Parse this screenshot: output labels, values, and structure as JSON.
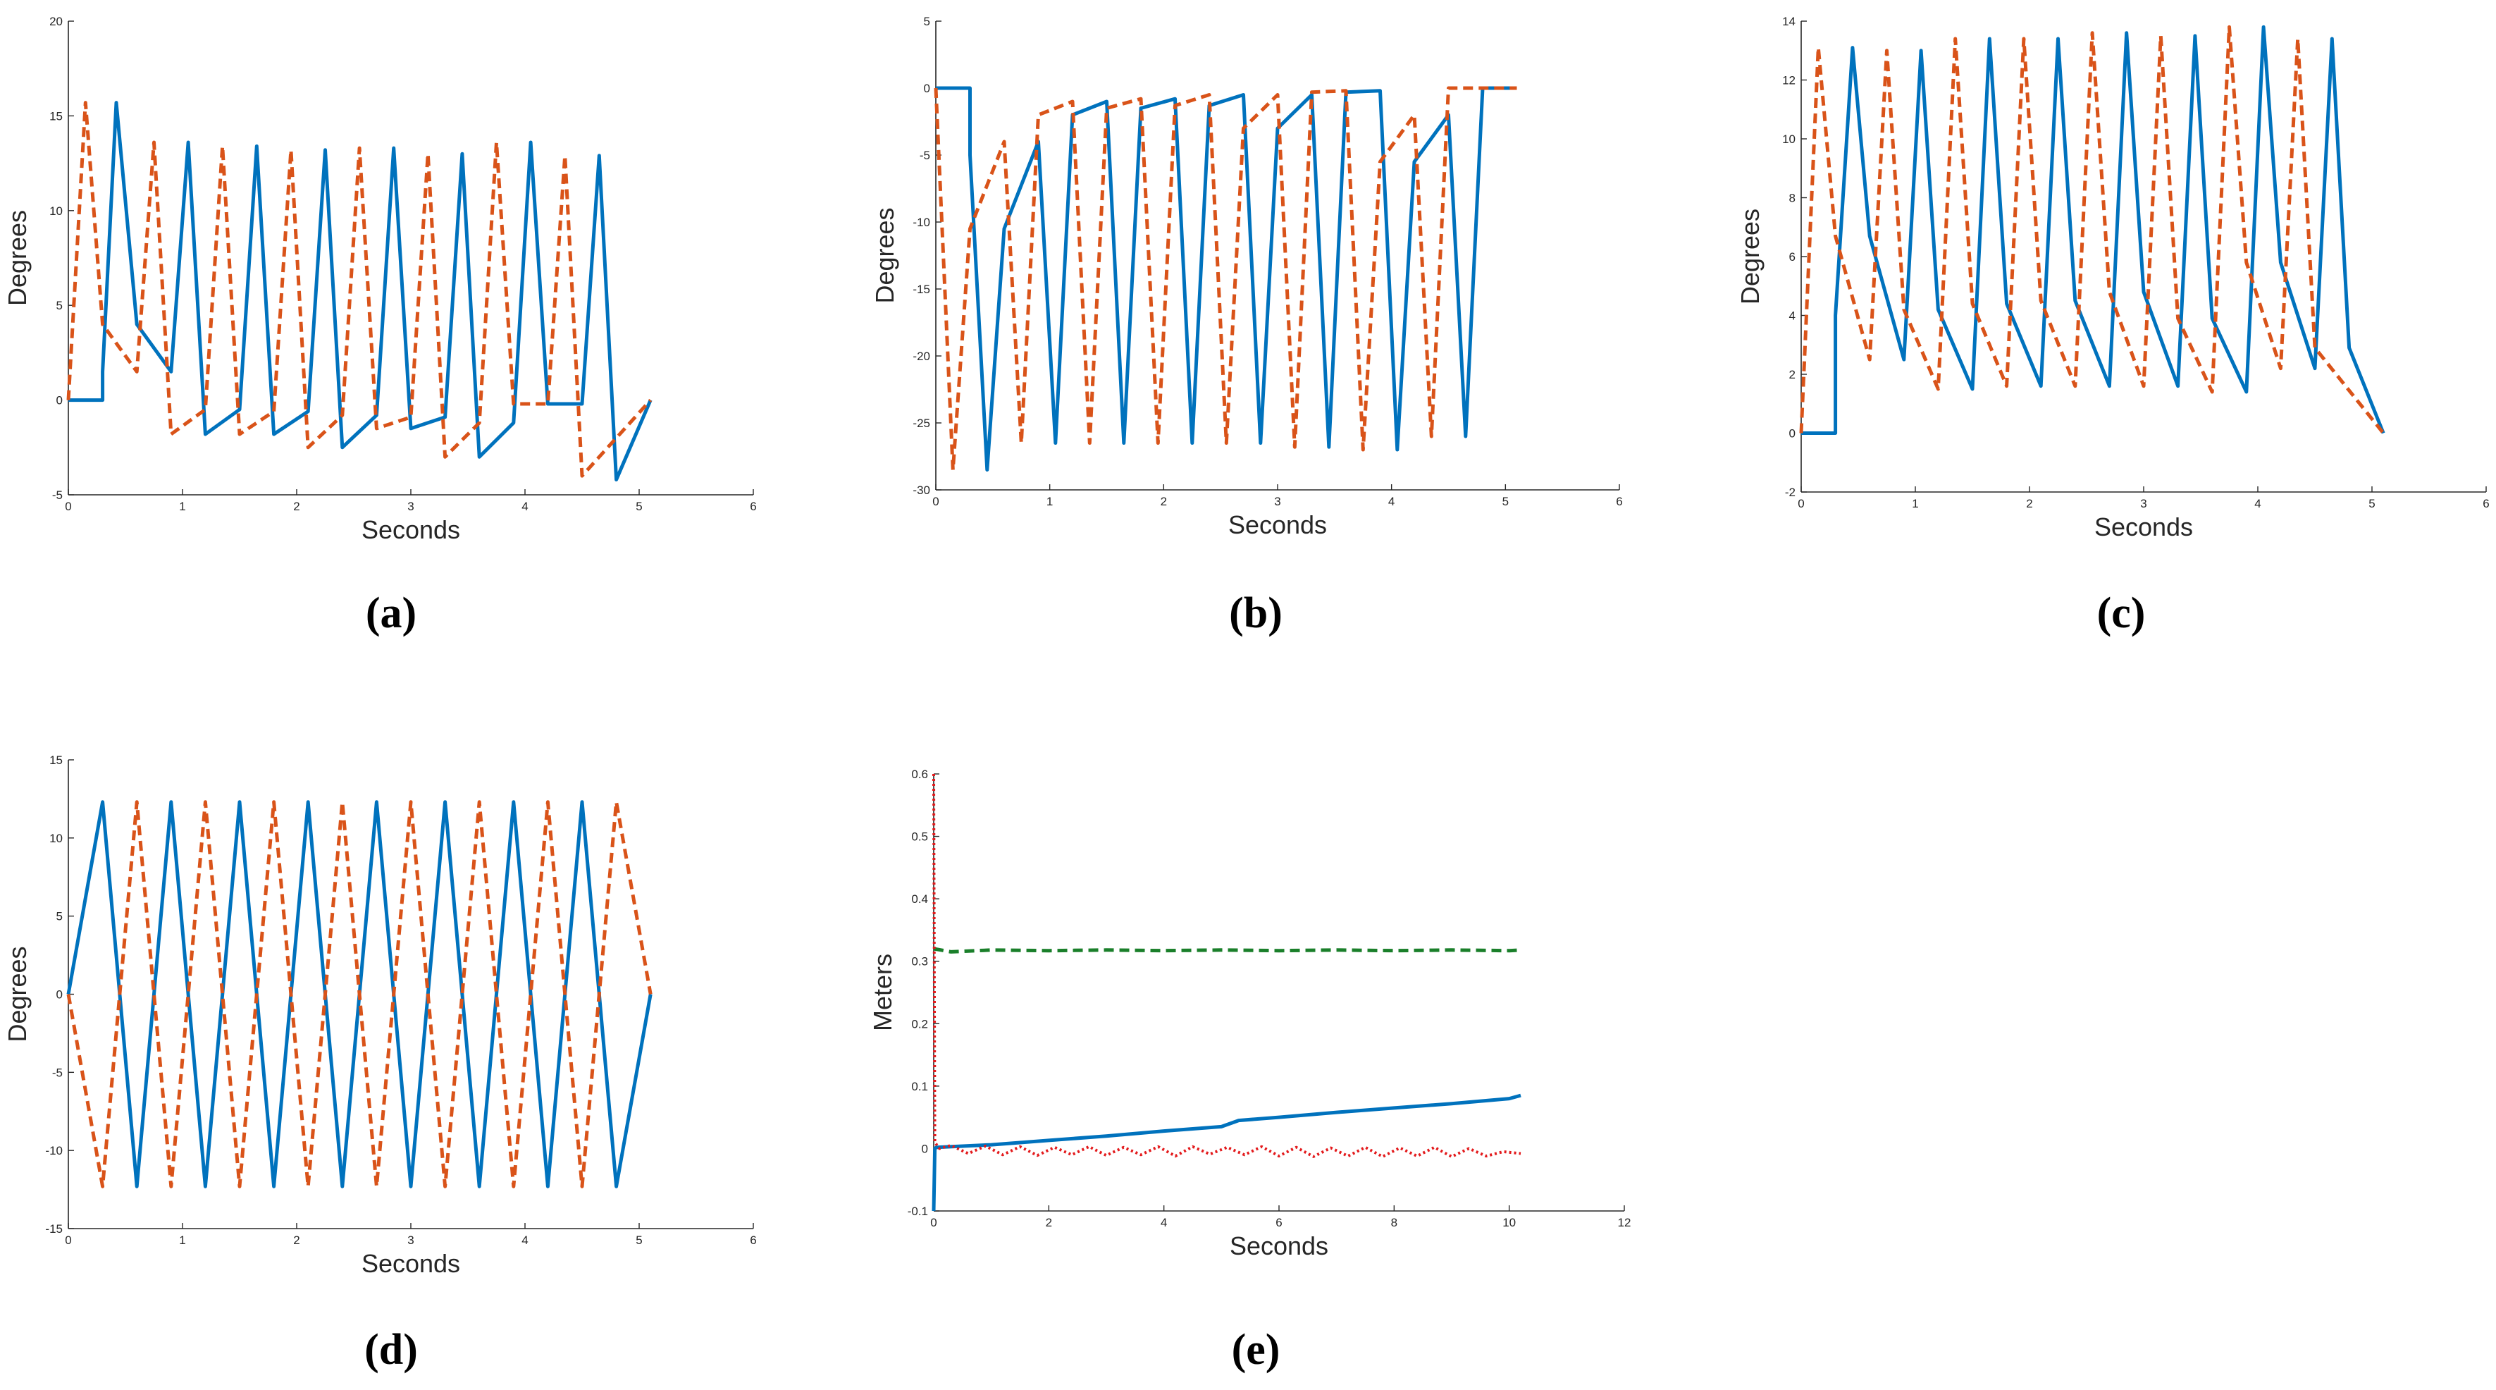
{
  "colors": {
    "series_solid": "#0072BD",
    "series_dashed": "#D95319",
    "series_green": "#1A7F2A",
    "series_red": "#E31A1C",
    "axis": "#262626"
  },
  "chart_data": [
    {
      "panel": "a",
      "caption": "(a)",
      "type": "line",
      "title": "",
      "xlabel": "Seconds",
      "ylabel": "Degrees",
      "xlim": [
        0,
        6
      ],
      "ylim": [
        -5,
        20
      ],
      "xticks": [
        0,
        1,
        2,
        3,
        4,
        5,
        6
      ],
      "yticks": [
        -5,
        0,
        5,
        10,
        15,
        20
      ],
      "series": [
        {
          "name": "solid",
          "style": "solid",
          "x": [
            0,
            0.3,
            0.3,
            0.42,
            0.6,
            0.6,
            0.9,
            0.9,
            1.05,
            1.2,
            1.2,
            1.5,
            1.5,
            1.65,
            1.8,
            1.8,
            2.1,
            2.1,
            2.25,
            2.4,
            2.4,
            2.7,
            2.7,
            2.85,
            3.0,
            3.0,
            3.3,
            3.3,
            3.45,
            3.6,
            3.6,
            3.9,
            3.9,
            4.05,
            4.2,
            4.2,
            4.5,
            4.5,
            4.65,
            4.8,
            4.8,
            5.1
          ],
          "values": [
            0,
            0,
            1.5,
            15.7,
            4.0,
            4.0,
            1.5,
            1.5,
            13.6,
            -1.8,
            -1.8,
            -0.5,
            -0.5,
            13.4,
            -1.8,
            -1.8,
            -0.6,
            -0.6,
            13.2,
            -2.5,
            -2.5,
            -0.8,
            -0.8,
            13.3,
            -1.5,
            -1.5,
            -0.9,
            -0.9,
            13.0,
            -3.0,
            -3.0,
            -1.2,
            -1.2,
            13.6,
            -0.2,
            -0.2,
            -0.2,
            -0.2,
            12.9,
            -4.2,
            -4.2,
            0.0
          ]
        },
        {
          "name": "dashed",
          "style": "dashed",
          "x": [
            0,
            0.15,
            0.3,
            0.3,
            0.6,
            0.6,
            0.75,
            0.9,
            0.9,
            1.2,
            1.2,
            1.35,
            1.5,
            1.5,
            1.8,
            1.8,
            1.95,
            2.1,
            2.1,
            2.4,
            2.4,
            2.55,
            2.7,
            2.7,
            3.0,
            3.0,
            3.15,
            3.3,
            3.3,
            3.6,
            3.6,
            3.75,
            3.9,
            3.9,
            4.2,
            4.2,
            4.35,
            4.5,
            4.5,
            5.1
          ],
          "values": [
            0,
            15.7,
            4.0,
            4.0,
            1.5,
            1.5,
            13.6,
            -1.8,
            -1.8,
            -0.5,
            -0.5,
            13.4,
            -1.8,
            -1.8,
            -0.6,
            -0.6,
            13.2,
            -2.5,
            -2.5,
            -0.8,
            -0.8,
            13.3,
            -1.5,
            -1.5,
            -0.9,
            -0.9,
            13.0,
            -3.0,
            -3.0,
            -1.2,
            -1.2,
            13.6,
            -0.2,
            -0.2,
            -0.2,
            -0.2,
            12.9,
            -4.0,
            -4.0,
            0.0
          ]
        }
      ]
    },
    {
      "panel": "b",
      "caption": "(b)",
      "type": "line",
      "title": "",
      "xlabel": "Seconds",
      "ylabel": "Degrees",
      "xlim": [
        0,
        6
      ],
      "ylim": [
        -30,
        5
      ],
      "xticks": [
        0,
        1,
        2,
        3,
        4,
        5,
        6
      ],
      "yticks": [
        -30,
        -25,
        -20,
        -15,
        -10,
        -5,
        0,
        5
      ],
      "series": [
        {
          "name": "solid",
          "style": "solid",
          "x": [
            0,
            0.3,
            0.3,
            0.45,
            0.6,
            0.6,
            0.9,
            0.9,
            1.05,
            1.2,
            1.2,
            1.5,
            1.5,
            1.65,
            1.8,
            1.8,
            2.1,
            2.1,
            2.25,
            2.4,
            2.4,
            2.7,
            2.7,
            2.85,
            3.0,
            3.0,
            3.3,
            3.3,
            3.45,
            3.6,
            3.6,
            3.9,
            3.9,
            4.05,
            4.2,
            4.2,
            4.5,
            4.5,
            4.65,
            4.8,
            4.8,
            5.1
          ],
          "values": [
            0,
            0,
            -5,
            -28.5,
            -10.5,
            -10.5,
            -4.0,
            -4.0,
            -26.5,
            -2.0,
            -2.0,
            -1.0,
            -1.0,
            -26.5,
            -1.5,
            -1.5,
            -0.8,
            -0.8,
            -26.5,
            -1.3,
            -1.3,
            -0.5,
            -0.5,
            -26.5,
            -3.0,
            -3.0,
            -0.5,
            -0.5,
            -26.8,
            -0.3,
            -0.3,
            -0.2,
            -0.2,
            -27.0,
            -5.5,
            -5.5,
            -2.0,
            -2.0,
            -26.0,
            0.0,
            0.0,
            0.0
          ]
        },
        {
          "name": "dashed",
          "style": "dashed",
          "x": [
            0,
            0.15,
            0.3,
            0.3,
            0.6,
            0.6,
            0.75,
            0.9,
            0.9,
            1.2,
            1.2,
            1.35,
            1.5,
            1.5,
            1.8,
            1.8,
            1.95,
            2.1,
            2.1,
            2.4,
            2.4,
            2.55,
            2.7,
            2.7,
            3.0,
            3.0,
            3.15,
            3.3,
            3.3,
            3.6,
            3.6,
            3.75,
            3.9,
            3.9,
            4.2,
            4.2,
            4.35,
            4.5,
            4.5,
            5.1
          ],
          "values": [
            0,
            -28.5,
            -10.5,
            -10.5,
            -4.0,
            -4.0,
            -26.5,
            -2.0,
            -2.0,
            -1.0,
            -1.0,
            -26.5,
            -1.5,
            -1.5,
            -0.8,
            -0.8,
            -26.5,
            -1.3,
            -1.3,
            -0.5,
            -0.5,
            -26.5,
            -3.0,
            -3.0,
            -0.5,
            -0.5,
            -26.8,
            -0.3,
            -0.3,
            -0.2,
            -0.2,
            -27.0,
            -5.5,
            -5.5,
            -2.0,
            -2.0,
            -26.0,
            0.0,
            0.0,
            0.0
          ]
        }
      ]
    },
    {
      "panel": "c",
      "caption": "(c)",
      "type": "line",
      "title": "",
      "xlabel": "Seconds",
      "ylabel": "Degrees",
      "xlim": [
        0,
        6
      ],
      "ylim": [
        -2,
        14
      ],
      "xticks": [
        0,
        1,
        2,
        3,
        4,
        5,
        6
      ],
      "yticks": [
        -2,
        0,
        2,
        4,
        6,
        8,
        10,
        12,
        14
      ],
      "series": [
        {
          "name": "solid",
          "style": "solid",
          "x": [
            0,
            0.3,
            0.3,
            0.45,
            0.6,
            0.6,
            0.9,
            0.9,
            1.05,
            1.2,
            1.2,
            1.5,
            1.5,
            1.65,
            1.8,
            1.8,
            2.1,
            2.1,
            2.25,
            2.4,
            2.4,
            2.7,
            2.7,
            2.85,
            3.0,
            3.0,
            3.3,
            3.3,
            3.45,
            3.6,
            3.6,
            3.9,
            3.9,
            4.05,
            4.2,
            4.2,
            4.5,
            4.5,
            4.65,
            4.8,
            4.8,
            5.1
          ],
          "values": [
            0,
            0,
            4.0,
            13.1,
            6.7,
            6.7,
            2.5,
            2.5,
            13.0,
            4.2,
            4.2,
            1.5,
            1.5,
            13.4,
            4.4,
            4.4,
            1.6,
            1.6,
            13.4,
            4.5,
            4.5,
            1.6,
            1.6,
            13.6,
            4.8,
            4.8,
            1.6,
            1.6,
            13.5,
            3.9,
            3.9,
            1.4,
            1.4,
            13.8,
            5.8,
            5.8,
            2.2,
            2.2,
            13.4,
            2.9,
            2.9,
            0.0
          ]
        },
        {
          "name": "dashed",
          "style": "dashed",
          "x": [
            0,
            0.15,
            0.3,
            0.3,
            0.6,
            0.6,
            0.75,
            0.9,
            0.9,
            1.2,
            1.2,
            1.35,
            1.5,
            1.5,
            1.8,
            1.8,
            1.95,
            2.1,
            2.1,
            2.4,
            2.4,
            2.55,
            2.7,
            2.7,
            3.0,
            3.0,
            3.15,
            3.3,
            3.3,
            3.6,
            3.6,
            3.75,
            3.9,
            3.9,
            4.2,
            4.2,
            4.35,
            4.5,
            4.5,
            5.1
          ],
          "values": [
            0,
            13.1,
            6.7,
            6.7,
            2.5,
            2.5,
            13.0,
            4.2,
            4.2,
            1.5,
            1.5,
            13.4,
            4.4,
            4.4,
            1.6,
            1.6,
            13.4,
            4.5,
            4.5,
            1.6,
            1.6,
            13.6,
            4.8,
            4.8,
            1.6,
            1.6,
            13.5,
            3.9,
            3.9,
            1.4,
            1.4,
            13.8,
            5.8,
            5.8,
            2.2,
            2.2,
            13.4,
            2.9,
            2.9,
            0.0
          ]
        }
      ]
    },
    {
      "panel": "d",
      "caption": "(d)",
      "type": "line",
      "title": "",
      "xlabel": "Seconds",
      "ylabel": "Degrees",
      "xlim": [
        0,
        6
      ],
      "ylim": [
        -15,
        15
      ],
      "xticks": [
        0,
        1,
        2,
        3,
        4,
        5,
        6
      ],
      "yticks": [
        -15,
        -10,
        -5,
        0,
        5,
        10,
        15
      ],
      "series": [
        {
          "name": "solid",
          "style": "solid",
          "x": [
            0,
            0.3,
            0.6,
            0.9,
            1.2,
            1.5,
            1.8,
            2.1,
            2.4,
            2.7,
            3.0,
            3.3,
            3.6,
            3.9,
            4.2,
            4.5,
            4.8,
            5.1
          ],
          "values": [
            0,
            12.3,
            -12.3,
            12.3,
            -12.3,
            12.3,
            -12.3,
            12.3,
            -12.3,
            12.3,
            -12.3,
            12.3,
            -12.3,
            12.3,
            -12.3,
            12.3,
            -12.3,
            0
          ]
        },
        {
          "name": "dashed",
          "style": "dashed",
          "x": [
            0,
            0.3,
            0.6,
            0.9,
            1.2,
            1.5,
            1.8,
            2.1,
            2.4,
            2.7,
            3.0,
            3.3,
            3.6,
            3.9,
            4.2,
            4.5,
            4.8,
            5.1
          ],
          "values": [
            0,
            -12.3,
            12.3,
            -12.3,
            12.3,
            -12.3,
            12.3,
            -12.3,
            12.3,
            -12.3,
            12.3,
            -12.3,
            12.3,
            -12.3,
            12.3,
            -12.3,
            12.3,
            0
          ]
        }
      ]
    },
    {
      "panel": "e",
      "caption": "(e)",
      "type": "line",
      "title": "",
      "xlabel": "Seconds",
      "ylabel": "Meters",
      "xlim": [
        0,
        12
      ],
      "ylim": [
        -0.1,
        0.6
      ],
      "xticks": [
        0,
        2,
        4,
        6,
        8,
        10,
        12
      ],
      "yticks": [
        -0.1,
        0,
        0.1,
        0.2,
        0.3,
        0.4,
        0.5,
        0.6
      ],
      "series": [
        {
          "name": "blue-solid",
          "style": "solid",
          "color_key": "series_solid",
          "x": [
            0,
            0.02,
            0.05,
            1,
            2,
            3,
            4,
            5,
            5.3,
            6,
            7,
            8,
            9,
            10,
            10.2
          ],
          "values": [
            -0.1,
            0.0,
            0.002,
            0.006,
            0.013,
            0.02,
            0.028,
            0.035,
            0.045,
            0.05,
            0.058,
            0.065,
            0.072,
            0.08,
            0.085
          ]
        },
        {
          "name": "green-dashed",
          "style": "dashed",
          "color_key": "series_green",
          "x": [
            0,
            0.3,
            1,
            2,
            3,
            4,
            5,
            6,
            7,
            8,
            9,
            10,
            10.2
          ],
          "values": [
            0.32,
            0.315,
            0.318,
            0.317,
            0.318,
            0.317,
            0.318,
            0.317,
            0.318,
            0.317,
            0.318,
            0.317,
            0.318
          ]
        },
        {
          "name": "red-dotted",
          "style": "dotted",
          "color_key": "series_red",
          "x": [
            0,
            0.02,
            0.1,
            0.3,
            0.6,
            0.9,
            1.2,
            1.5,
            1.8,
            2.1,
            2.4,
            2.7,
            3.0,
            3.3,
            3.6,
            3.9,
            4.2,
            4.5,
            4.8,
            5.1,
            5.4,
            5.7,
            6.0,
            6.3,
            6.6,
            6.9,
            7.2,
            7.5,
            7.8,
            8.1,
            8.4,
            8.7,
            9.0,
            9.3,
            9.6,
            9.9,
            10.2
          ],
          "values": [
            0.6,
            0.01,
            0.0,
            0.005,
            -0.008,
            0.004,
            -0.01,
            0.003,
            -0.011,
            0.002,
            -0.01,
            0.003,
            -0.011,
            0.002,
            -0.01,
            0.003,
            -0.012,
            0.003,
            -0.009,
            0.002,
            -0.01,
            0.003,
            -0.012,
            0.002,
            -0.013,
            0.001,
            -0.012,
            0.002,
            -0.013,
            0.001,
            -0.012,
            0.002,
            -0.013,
            0.0,
            -0.012,
            -0.005,
            -0.008
          ]
        }
      ]
    }
  ]
}
